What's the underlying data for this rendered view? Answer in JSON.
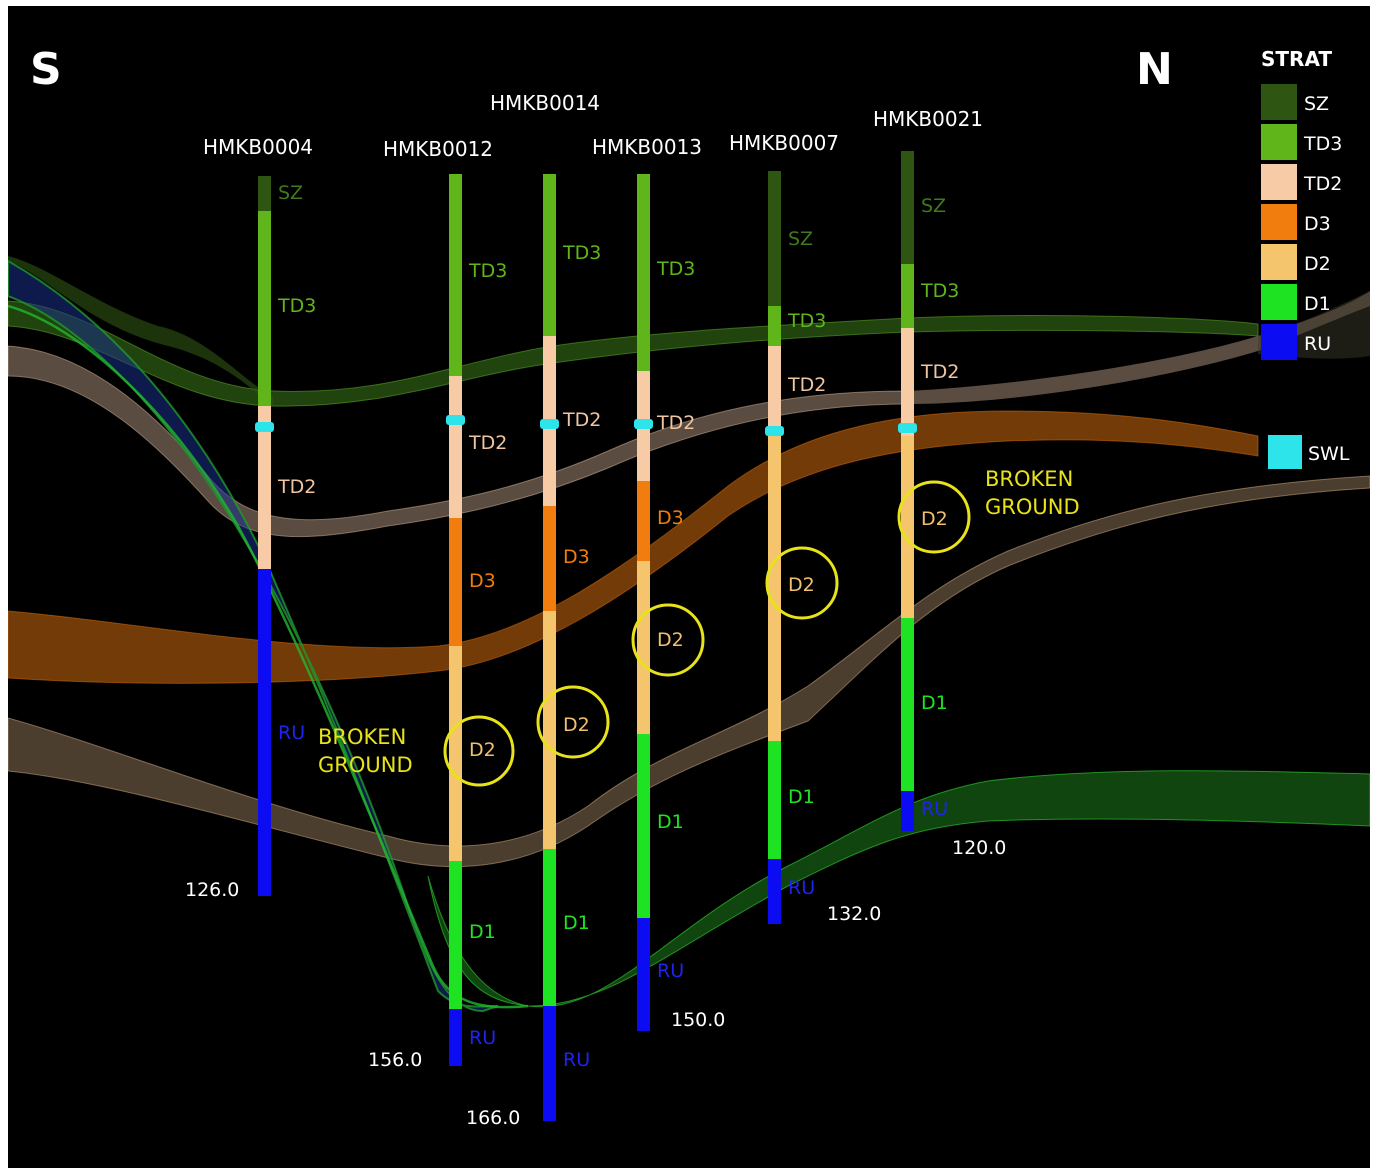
{
  "directions": {
    "left": "S",
    "right": "N"
  },
  "legend": {
    "title": "STRAT",
    "items": [
      {
        "label": "SZ",
        "color": "#2f5512"
      },
      {
        "label": "TD3",
        "color": "#5fb51a"
      },
      {
        "label": "TD2",
        "color": "#f7cba6"
      },
      {
        "label": "D3",
        "color": "#f07d0e"
      },
      {
        "label": "D2",
        "color": "#f5c56e"
      },
      {
        "label": "D1",
        "color": "#1ee323"
      },
      {
        "label": "RU",
        "color": "#0b0cf2"
      }
    ],
    "swl": {
      "label": "SWL",
      "color": "#2de4ea"
    }
  },
  "boreholes": [
    {
      "id": "HMKB0004",
      "depth_label": "126.0",
      "units": [
        {
          "code": "SZ",
          "label": "SZ"
        },
        {
          "code": "TD3",
          "label": "TD3"
        },
        {
          "code": "TD2",
          "label": "TD2"
        },
        {
          "code": "RU",
          "label": "RU"
        }
      ]
    },
    {
      "id": "HMKB0012",
      "depth_label": "156.0",
      "units": [
        {
          "code": "TD3",
          "label": "TD3"
        },
        {
          "code": "TD2",
          "label": "TD2"
        },
        {
          "code": "D3",
          "label": "D3"
        },
        {
          "code": "D2",
          "label": "D2"
        },
        {
          "code": "D1",
          "label": "D1"
        },
        {
          "code": "RU",
          "label": "RU"
        }
      ]
    },
    {
      "id": "HMKB0014",
      "depth_label": "166.0",
      "units": [
        {
          "code": "TD3",
          "label": "TD3"
        },
        {
          "code": "TD2",
          "label": "TD2"
        },
        {
          "code": "D3",
          "label": "D3"
        },
        {
          "code": "D2",
          "label": "D2"
        },
        {
          "code": "D1",
          "label": "D1"
        },
        {
          "code": "RU",
          "label": "RU"
        }
      ]
    },
    {
      "id": "HMKB0013",
      "depth_label": "150.0",
      "units": [
        {
          "code": "TD3",
          "label": "TD3"
        },
        {
          "code": "TD2",
          "label": "TD2"
        },
        {
          "code": "D3",
          "label": "D3"
        },
        {
          "code": "D2",
          "label": "D2"
        },
        {
          "code": "D1",
          "label": "D1"
        },
        {
          "code": "RU",
          "label": "RU"
        }
      ]
    },
    {
      "id": "HMKB0007",
      "depth_label": "132.0",
      "units": [
        {
          "code": "SZ",
          "label": "SZ"
        },
        {
          "code": "TD3",
          "label": "TD3"
        },
        {
          "code": "TD2",
          "label": "TD2"
        },
        {
          "code": "D2",
          "label": "D2"
        },
        {
          "code": "D1",
          "label": "D1"
        },
        {
          "code": "RU",
          "label": "RU"
        }
      ]
    },
    {
      "id": "HMKB0021",
      "depth_label": "120.0",
      "units": [
        {
          "code": "SZ",
          "label": "SZ"
        },
        {
          "code": "TD3",
          "label": "TD3"
        },
        {
          "code": "TD2",
          "label": "TD2"
        },
        {
          "code": "D2",
          "label": "D2"
        },
        {
          "code": "D1",
          "label": "D1"
        },
        {
          "code": "RU",
          "label": "RU"
        }
      ]
    }
  ],
  "annotations": {
    "broken_ground_left": [
      "BROKEN",
      "GROUND"
    ],
    "broken_ground_right": [
      "BROKEN",
      "GROUND"
    ]
  }
}
